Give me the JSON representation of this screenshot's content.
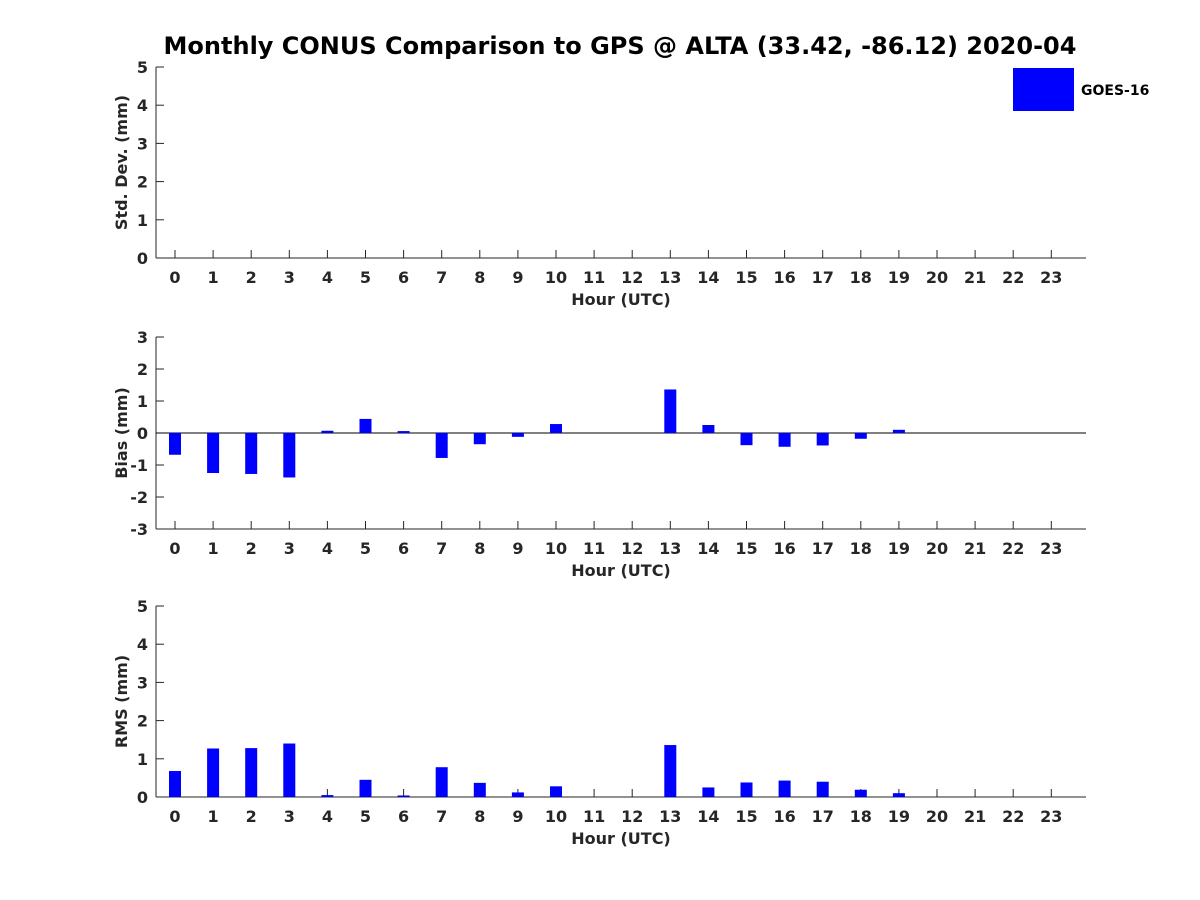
{
  "title": "Monthly CONUS Comparison to GPS @ ALTA (33.42, -86.12) 2020-04",
  "legend": {
    "label": "GOES-16",
    "color": "#0000ff",
    "placement": "top-right"
  },
  "chart_data": [
    {
      "type": "bar",
      "xlabel": "Hour (UTC)",
      "ylabel": "Std. Dev. (mm)",
      "ylim": [
        0,
        5
      ],
      "yticks": [
        0,
        1,
        2,
        3,
        4,
        5
      ],
      "categories": [
        "0",
        "1",
        "2",
        "3",
        "4",
        "5",
        "6",
        "7",
        "8",
        "9",
        "10",
        "11",
        "12",
        "13",
        "14",
        "15",
        "16",
        "17",
        "18",
        "19",
        "20",
        "21",
        "22",
        "23"
      ],
      "series": [
        {
          "name": "GOES-16",
          "values": [
            null,
            null,
            null,
            null,
            null,
            null,
            null,
            null,
            null,
            null,
            null,
            null,
            null,
            null,
            null,
            null,
            null,
            null,
            null,
            null,
            null,
            null,
            null,
            null
          ]
        }
      ]
    },
    {
      "type": "bar",
      "xlabel": "Hour (UTC)",
      "ylabel": "Bias (mm)",
      "ylim": [
        -3,
        3
      ],
      "yticks": [
        -3,
        -2,
        -1,
        0,
        1,
        2,
        3
      ],
      "zero_line": true,
      "categories": [
        "0",
        "1",
        "2",
        "3",
        "4",
        "5",
        "6",
        "7",
        "8",
        "9",
        "10",
        "11",
        "12",
        "13",
        "14",
        "15",
        "16",
        "17",
        "18",
        "19",
        "20",
        "21",
        "22",
        "23"
      ],
      "series": [
        {
          "name": "GOES-16",
          "values": [
            -0.68,
            -1.25,
            -1.28,
            -1.39,
            0.07,
            0.44,
            0.06,
            -0.78,
            -0.35,
            -0.12,
            0.28,
            null,
            null,
            1.36,
            0.25,
            -0.38,
            -0.43,
            -0.39,
            -0.18,
            0.1,
            null,
            null,
            null,
            null
          ]
        }
      ]
    },
    {
      "type": "bar",
      "xlabel": "Hour (UTC)",
      "ylabel": "RMS (mm)",
      "ylim": [
        0,
        5
      ],
      "yticks": [
        0,
        1,
        2,
        3,
        4,
        5
      ],
      "categories": [
        "0",
        "1",
        "2",
        "3",
        "4",
        "5",
        "6",
        "7",
        "8",
        "9",
        "10",
        "11",
        "12",
        "13",
        "14",
        "15",
        "16",
        "17",
        "18",
        "19",
        "20",
        "21",
        "22",
        "23"
      ],
      "series": [
        {
          "name": "GOES-16",
          "values": [
            0.68,
            1.27,
            1.28,
            1.4,
            0.05,
            0.45,
            0.04,
            0.78,
            0.37,
            0.12,
            0.28,
            null,
            null,
            1.36,
            0.25,
            0.38,
            0.43,
            0.4,
            0.19,
            0.1,
            null,
            null,
            null,
            null
          ]
        }
      ]
    }
  ]
}
